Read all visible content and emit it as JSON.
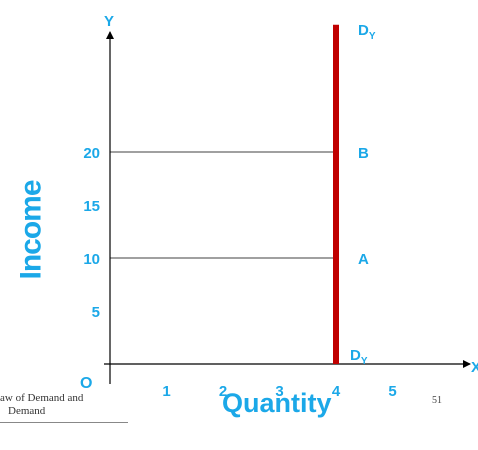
{
  "colors": {
    "accent": "#1ba8e8",
    "curve": "#c00000",
    "axis": "#000000",
    "guide": "#000000"
  },
  "chart_data": {
    "type": "line",
    "xlabel": "Quantity",
    "ylabel": "Income",
    "x_axis_letter": "X",
    "y_axis_letter": "Y",
    "origin_label": "O",
    "x_ticks": [
      "1",
      "2",
      "3",
      "4",
      "5"
    ],
    "y_ticks": [
      "5",
      "10",
      "15",
      "20"
    ],
    "xlim": [
      0,
      5.5
    ],
    "ylim": [
      0,
      32
    ],
    "grid": false,
    "series": [
      {
        "label_top": "DY",
        "label_bottom": "DY",
        "x": [
          4,
          4
        ],
        "y": [
          0,
          32
        ]
      }
    ],
    "points": [
      {
        "label": "A",
        "x": 4,
        "y": 10
      },
      {
        "label": "B",
        "x": 4,
        "y": 20
      }
    ]
  },
  "footer": {
    "line1": "aw of Demand and",
    "line2": "Demand",
    "page": "51"
  }
}
